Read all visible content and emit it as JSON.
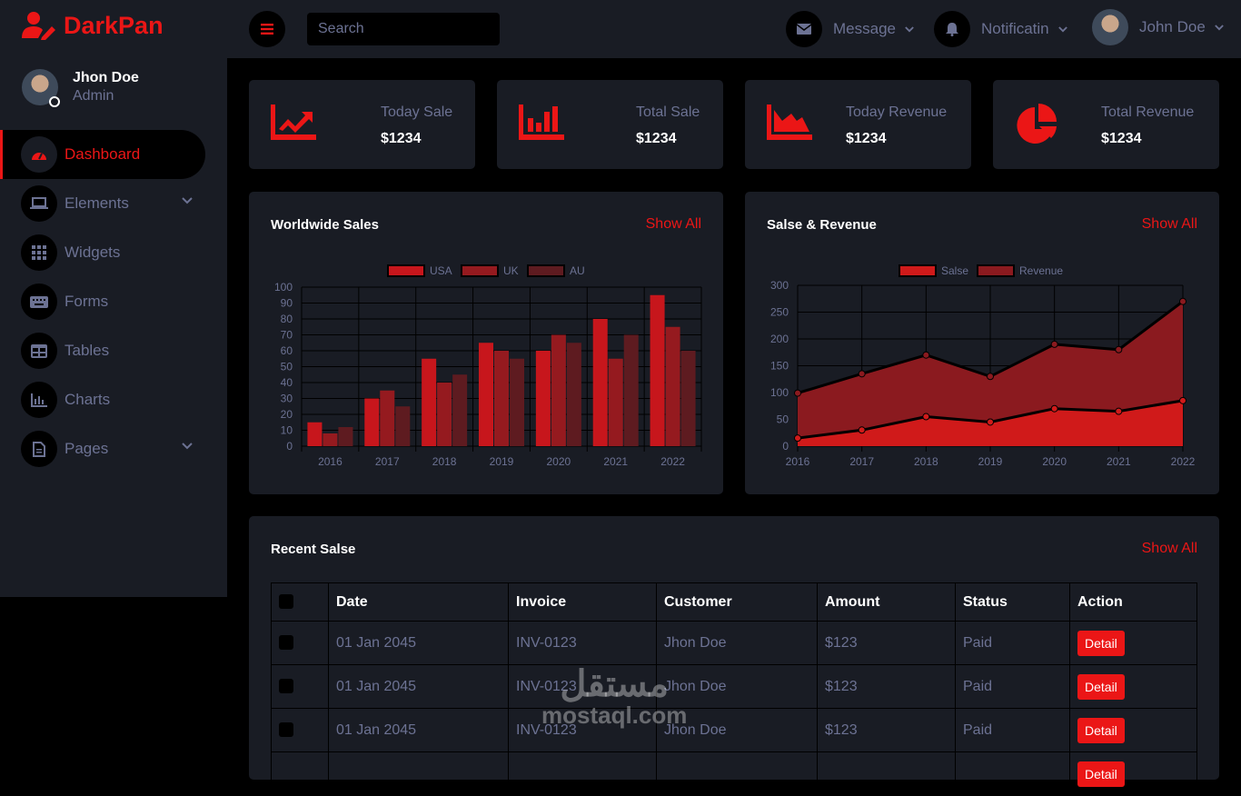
{
  "brand": {
    "name": "DarkPan",
    "color": "#eb1616"
  },
  "sidebar": {
    "user_name": "Jhon Doe",
    "user_role": "Admin",
    "items": [
      {
        "label": "Dashboard",
        "icon": "gauge-icon",
        "active": true
      },
      {
        "label": "Elements",
        "icon": "laptop-icon",
        "has_dropdown": true
      },
      {
        "label": "Widgets",
        "icon": "grid-icon"
      },
      {
        "label": "Forms",
        "icon": "keyboard-icon"
      },
      {
        "label": "Tables",
        "icon": "table-icon"
      },
      {
        "label": "Charts",
        "icon": "chart-icon"
      },
      {
        "label": "Pages",
        "icon": "file-icon",
        "has_dropdown": true
      }
    ]
  },
  "topbar": {
    "search_placeholder": "Search",
    "message_label": "Message",
    "notification_label": "Notificatin",
    "user_name": "John Doe"
  },
  "stats": [
    {
      "label": "Today Sale",
      "value": "$1234",
      "icon": "chart-line-icon"
    },
    {
      "label": "Total Sale",
      "value": "$1234",
      "icon": "chart-bar-icon"
    },
    {
      "label": "Today Revenue",
      "value": "$1234",
      "icon": "chart-area-icon"
    },
    {
      "label": "Total Revenue",
      "value": "$1234",
      "icon": "chart-pie-icon"
    }
  ],
  "worldwide": {
    "title": "Worldwide Sales",
    "show_all": "Show All"
  },
  "sales_revenue": {
    "title": "Salse & Revenue",
    "show_all": "Show All"
  },
  "chart_data": [
    {
      "type": "bar",
      "categories": [
        "2016",
        "2017",
        "2018",
        "2019",
        "2020",
        "2021",
        "2022"
      ],
      "series": [
        {
          "name": "USA",
          "values": [
            15,
            30,
            55,
            65,
            60,
            80,
            95
          ],
          "color": "#c7161c"
        },
        {
          "name": "UK",
          "values": [
            8,
            35,
            40,
            60,
            70,
            55,
            75
          ],
          "color": "#951a1f"
        },
        {
          "name": "AU",
          "values": [
            12,
            25,
            45,
            55,
            65,
            70,
            60
          ],
          "color": "#5e1b20"
        }
      ],
      "ylim": [
        0,
        100
      ],
      "yticks": [
        "0",
        "10",
        "20",
        "30",
        "40",
        "50",
        "60",
        "70",
        "80",
        "90",
        "100"
      ],
      "legend": "top",
      "grid": true
    },
    {
      "type": "area",
      "categories": [
        "2016",
        "2017",
        "2018",
        "2019",
        "2020",
        "2021",
        "2022"
      ],
      "series": [
        {
          "name": "Salse",
          "values": [
            15,
            30,
            55,
            45,
            70,
            65,
            85
          ],
          "color": "#d01a1a"
        },
        {
          "name": "Revenue",
          "values": [
            99,
            135,
            170,
            130,
            190,
            180,
            270
          ],
          "color": "#8b1a1f"
        }
      ],
      "ylim": [
        0,
        300
      ],
      "yticks": [
        "0",
        "50",
        "100",
        "150",
        "200",
        "250",
        "300"
      ],
      "legend": "top",
      "grid": true
    }
  ],
  "recent": {
    "title": "Recent Salse",
    "show_all": "Show All",
    "columns": [
      "Date",
      "Invoice",
      "Customer",
      "Amount",
      "Status",
      "Action"
    ],
    "rows": [
      {
        "date": "01 Jan 2045",
        "invoice": "INV-0123",
        "customer": "Jhon Doe",
        "amount": "$123",
        "status": "Paid",
        "action": "Detail"
      },
      {
        "date": "01 Jan 2045",
        "invoice": "INV-0123",
        "customer": "Jhon Doe",
        "amount": "$123",
        "status": "Paid",
        "action": "Detail"
      },
      {
        "date": "01 Jan 2045",
        "invoice": "INV-0123",
        "customer": "Jhon Doe",
        "amount": "$123",
        "status": "Paid",
        "action": "Detail"
      },
      {
        "date": "",
        "invoice": "",
        "customer": "",
        "amount": "",
        "status": "",
        "action": "Detail"
      }
    ]
  },
  "watermark": {
    "arabic": "مستقل",
    "latin": "mostaql.com"
  }
}
